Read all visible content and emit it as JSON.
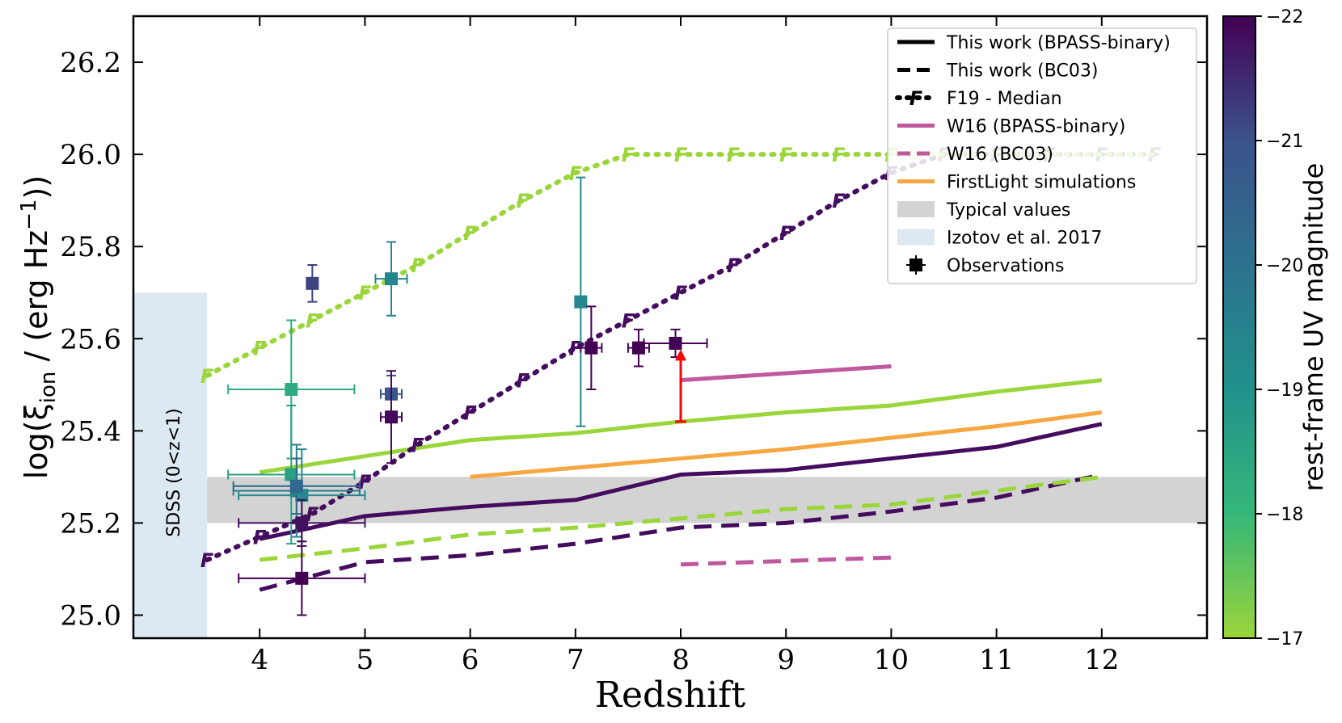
{
  "chart_data": {
    "type": "line",
    "xlabel": "Redshift",
    "ylabel_prefix": "log(ξ",
    "ylabel_sub": "ion",
    "ylabel_mid": " / (erg  Hz",
    "ylabel_sup": "−1",
    "ylabel_suffix": "))",
    "xlim": [
      2.8,
      13.0
    ],
    "ylim": [
      24.95,
      26.3
    ],
    "xticks": [
      4,
      5,
      6,
      7,
      8,
      9,
      10,
      11,
      12
    ],
    "xtick_labels": [
      "4",
      "5",
      "6",
      "7",
      "8",
      "9",
      "10",
      "11",
      "12"
    ],
    "yticks": [
      25.0,
      25.2,
      25.4,
      25.6,
      25.8,
      26.0,
      26.2
    ],
    "ytick_labels": [
      "25.0",
      "25.2",
      "25.4",
      "25.6",
      "25.8",
      "26.0",
      "26.2"
    ],
    "sdss_label": "SDSS (0<z<1)",
    "sdss_band": {
      "x": [
        2.8,
        3.5
      ],
      "y": [
        24.95,
        25.7
      ]
    },
    "typical_band": {
      "x": [
        3.5,
        13.0
      ],
      "y": [
        25.2,
        25.3
      ]
    },
    "colorbar": {
      "label": "rest-frame UV magnitude",
      "range": [
        -22,
        -17
      ],
      "ticks": [
        -22,
        -21,
        -20,
        -19,
        -18,
        -17
      ],
      "tick_labels": [
        "−22",
        "−21",
        "−20",
        "−19",
        "−18",
        "−17"
      ]
    },
    "series": [
      {
        "name": "This work (BPASS-binary) bright",
        "style": "solid",
        "color": "#440c5e",
        "x": [
          4,
          4.5,
          5,
          6,
          7,
          8,
          9,
          10,
          11,
          12
        ],
        "y": [
          25.165,
          25.19,
          25.215,
          25.235,
          25.25,
          25.305,
          25.315,
          25.34,
          25.365,
          25.415
        ]
      },
      {
        "name": "This work (BPASS-binary) faint",
        "style": "solid",
        "color": "#9ad53a",
        "x": [
          4,
          5,
          6,
          7,
          8,
          9,
          10,
          11,
          12
        ],
        "y": [
          25.31,
          25.345,
          25.38,
          25.395,
          25.42,
          25.44,
          25.455,
          25.485,
          25.51
        ]
      },
      {
        "name": "This work (BC03) bright",
        "style": "dashed",
        "color": "#440c5e",
        "x": [
          4,
          5,
          6,
          7,
          8,
          9,
          10,
          11,
          12
        ],
        "y": [
          25.055,
          25.115,
          25.13,
          25.155,
          25.19,
          25.2,
          25.225,
          25.255,
          25.305
        ]
      },
      {
        "name": "This work (BC03) faint",
        "style": "dashed",
        "color": "#9ad53a",
        "x": [
          4,
          5,
          6,
          7,
          8,
          9,
          10,
          11,
          12
        ],
        "y": [
          25.12,
          25.145,
          25.175,
          25.19,
          25.21,
          25.23,
          25.24,
          25.27,
          25.3
        ]
      },
      {
        "name": "F19 - Median bright",
        "style": "dotted-F",
        "color": "#440c5e",
        "x": [
          3.5,
          4,
          4.5,
          5,
          5.5,
          6,
          6.5,
          7,
          7.5,
          8,
          8.5,
          9,
          9.5,
          10,
          10.5,
          11,
          11.5,
          12,
          12.5
        ],
        "y": [
          25.12,
          25.17,
          25.22,
          25.29,
          25.37,
          25.44,
          25.51,
          25.58,
          25.64,
          25.7,
          25.76,
          25.83,
          25.9,
          25.96,
          26.0,
          26.0,
          26.0,
          26.0,
          26.0
        ]
      },
      {
        "name": "F19 - Median faint",
        "style": "dotted-F",
        "color": "#9ad53a",
        "x": [
          3.5,
          4,
          4.5,
          5,
          5.5,
          6,
          6.5,
          7,
          7.5,
          8,
          8.5,
          9,
          9.5,
          10,
          10.5,
          11,
          11.5,
          12,
          12.5
        ],
        "y": [
          25.52,
          25.58,
          25.64,
          25.7,
          25.76,
          25.83,
          25.9,
          25.96,
          26.0,
          26.0,
          26.0,
          26.0,
          26.0,
          26.0,
          26.0,
          26.0,
          26.0,
          26.0,
          26.0
        ]
      },
      {
        "name": "W16 (BPASS-binary)",
        "style": "solid",
        "color": "#c0589e",
        "x": [
          8,
          10
        ],
        "y": [
          25.51,
          25.54
        ]
      },
      {
        "name": "W16 (BC03)",
        "style": "dashed",
        "color": "#c0589e",
        "x": [
          8,
          10
        ],
        "y": [
          25.11,
          25.125
        ]
      },
      {
        "name": "FirstLight simulations",
        "style": "solid",
        "color": "#f5a742",
        "x": [
          6,
          7,
          8,
          9,
          9.6,
          10,
          11,
          12
        ],
        "y": [
          25.3,
          25.32,
          25.34,
          25.36,
          25.375,
          25.385,
          25.41,
          25.44
        ]
      }
    ],
    "observations": [
      {
        "x": 4.3,
        "y": 25.49,
        "xerr": 0.6,
        "yerr": 0.15,
        "mag": -18.3
      },
      {
        "x": 4.3,
        "y": 25.305,
        "xerr": 0.6,
        "yerr": 0.15,
        "mag": -18.6
      },
      {
        "x": 4.35,
        "y": 25.27,
        "xerr": 0.6,
        "yerr": 0.1,
        "mag": -19.6
      },
      {
        "x": 4.4,
        "y": 25.26,
        "xerr": 0.6,
        "yerr": 0.1,
        "mag": -19.3
      },
      {
        "x": 4.35,
        "y": 25.28,
        "xerr": 0.6,
        "yerr": 0.06,
        "mag": -20.3
      },
      {
        "x": 4.4,
        "y": 25.2,
        "xerr": 0.6,
        "yerr": 0.05,
        "mag": -21.8
      },
      {
        "x": 4.4,
        "y": 25.08,
        "xerr": 0.6,
        "yerr": 0.08,
        "mag": -22.0
      },
      {
        "x": 4.5,
        "y": 25.72,
        "xerr": 0.0,
        "yerr": 0.04,
        "mag": -21.2
      },
      {
        "x": 5.25,
        "y": 25.73,
        "xerr": 0.15,
        "yerr": 0.08,
        "mag": -19.4
      },
      {
        "x": 5.25,
        "y": 25.48,
        "xerr": 0.1,
        "yerr": 0.04,
        "mag": -20.9
      },
      {
        "x": 5.25,
        "y": 25.43,
        "xerr": 0.1,
        "yerr": 0.1,
        "mag": -21.9
      },
      {
        "x": 7.05,
        "y": 25.68,
        "xerr": 0.0,
        "yerr": 0.27,
        "mag": -19.3
      },
      {
        "x": 7.15,
        "y": 25.58,
        "xerr": 0.1,
        "yerr": 0.09,
        "mag": -22.0
      },
      {
        "x": 7.6,
        "y": 25.58,
        "xerr": 0.1,
        "yerr": 0.04,
        "mag": -22.0
      },
      {
        "x": 7.95,
        "y": 25.59,
        "xerr": 0.3,
        "yerr": 0.03,
        "mag": -22.0
      }
    ],
    "lower_limit": {
      "x": 8.0,
      "y": 25.42,
      "y_to": 25.57,
      "color": "#ff0000"
    },
    "legend": {
      "placement": "top-right",
      "entries": [
        {
          "label": "This work (BPASS-binary)",
          "kind": "solid",
          "color": "#000000"
        },
        {
          "label": "This work (BC03)",
          "kind": "dashed",
          "color": "#000000"
        },
        {
          "label": "F19 - Median",
          "kind": "dotted-F",
          "color": "#000000"
        },
        {
          "label": "W16 (BPASS-binary)",
          "kind": "solid",
          "color": "#c0589e"
        },
        {
          "label": "W16 (BC03)",
          "kind": "dashed",
          "color": "#c0589e"
        },
        {
          "label": "FirstLight simulations",
          "kind": "solid",
          "color": "#f5a742"
        },
        {
          "label": "Typical values",
          "kind": "patch",
          "color": "#d3d3d3"
        },
        {
          "label": "Izotov et al. 2017",
          "kind": "patch",
          "color": "#dce9f2"
        },
        {
          "label": "Observations",
          "kind": "errsquare",
          "color": "#000000"
        }
      ]
    }
  },
  "colors": {
    "sdss": "#dce9f2",
    "typical": "#d3d3d3",
    "viridis_stops": [
      "#440154",
      "#482878",
      "#3e4989",
      "#31688e",
      "#26828e",
      "#1f9e89",
      "#35b779",
      "#6ece58",
      "#b5de2b",
      "#fde725"
    ]
  }
}
